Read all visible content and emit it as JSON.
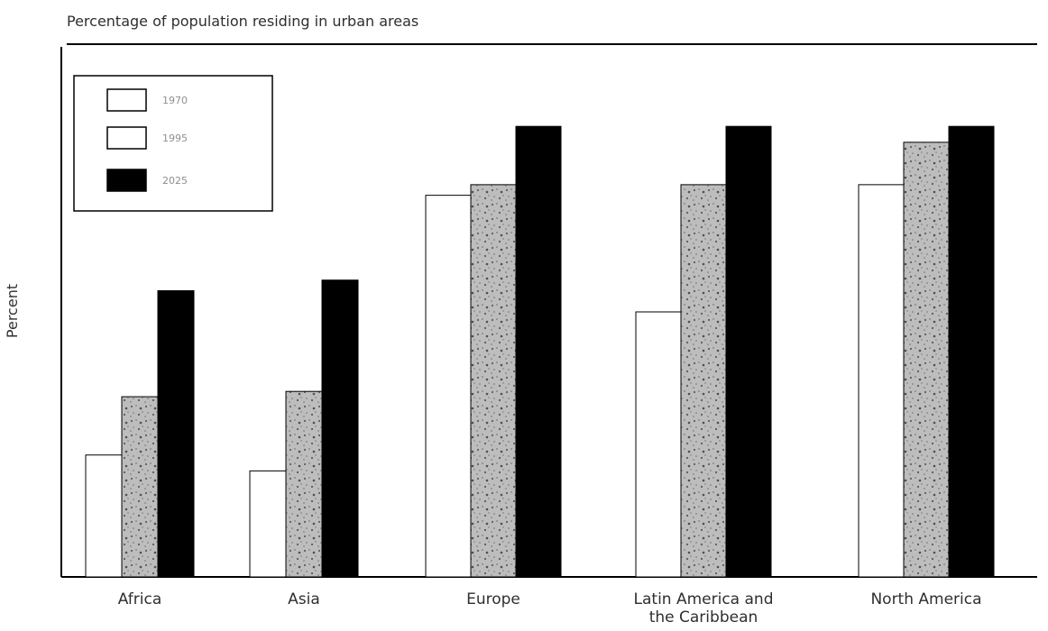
{
  "chart_data": {
    "type": "bar",
    "title": "Percentage of population residing in urban areas",
    "ylabel": "Percent",
    "xlabel": "",
    "categories": [
      "Africa",
      "Asia",
      "Europe",
      "Latin America and the Caribbean",
      "North America"
    ],
    "series": [
      {
        "name": "1970",
        "values": [
          23,
          20,
          72,
          50,
          74
        ]
      },
      {
        "name": "1995",
        "values": [
          34,
          35,
          74,
          74,
          82
        ]
      },
      {
        "name": "2025",
        "values": [
          54,
          56,
          85,
          85,
          85
        ]
      }
    ],
    "ylim": [
      0,
      100
    ],
    "yticks": [],
    "grid": false,
    "legend_position": "top-left",
    "colors": {
      "1970": "#ffffff",
      "1995": "#a8a8a8",
      "2025": "#000000",
      "axis": "#000000"
    }
  }
}
